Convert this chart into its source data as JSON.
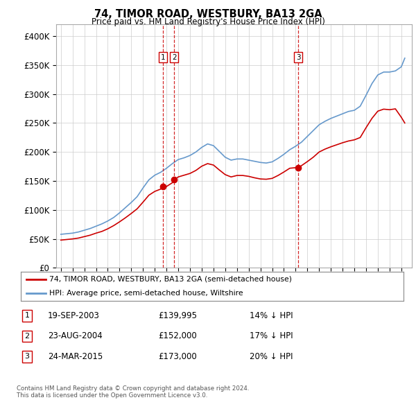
{
  "title": "74, TIMOR ROAD, WESTBURY, BA13 2GA",
  "subtitle": "Price paid vs. HM Land Registry's House Price Index (HPI)",
  "legend_line1": "74, TIMOR ROAD, WESTBURY, BA13 2GA (semi-detached house)",
  "legend_line2": "HPI: Average price, semi-detached house, Wiltshire",
  "footer1": "Contains HM Land Registry data © Crown copyright and database right 2024.",
  "footer2": "This data is licensed under the Open Government Licence v3.0.",
  "sale_color": "#cc0000",
  "hpi_color": "#6699cc",
  "vline_color": "#cc0000",
  "marker_dates": [
    2003.72,
    2004.65,
    2015.23
  ],
  "marker_labels": [
    "1",
    "2",
    "3"
  ],
  "marker_prices": [
    139995,
    152000,
    173000
  ],
  "sale_info": [
    [
      "1",
      "19-SEP-2003",
      "£139,995",
      "14% ↓ HPI"
    ],
    [
      "2",
      "23-AUG-2004",
      "£152,000",
      "17% ↓ HPI"
    ],
    [
      "3",
      "24-MAR-2015",
      "£173,000",
      "20% ↓ HPI"
    ]
  ],
  "ylim": [
    0,
    420000
  ],
  "yticks": [
    0,
    50000,
    100000,
    150000,
    200000,
    250000,
    300000,
    350000,
    400000
  ],
  "ytick_labels": [
    "£0",
    "£50K",
    "£100K",
    "£150K",
    "£200K",
    "£250K",
    "£300K",
    "£350K",
    "£400K"
  ],
  "xlim_start": 1994.6,
  "xlim_end": 2024.9,
  "years_hpi": [
    1995,
    1995.5,
    1996,
    1996.5,
    1997,
    1997.5,
    1998,
    1998.5,
    1999,
    1999.5,
    2000,
    2000.5,
    2001,
    2001.5,
    2002,
    2002.5,
    2003,
    2003.5,
    2004,
    2004.5,
    2005,
    2005.5,
    2006,
    2006.5,
    2007,
    2007.5,
    2008,
    2008.5,
    2009,
    2009.5,
    2010,
    2010.5,
    2011,
    2011.5,
    2012,
    2012.5,
    2013,
    2013.5,
    2014,
    2014.5,
    2015,
    2015.5,
    2016,
    2016.5,
    2017,
    2017.5,
    2018,
    2018.5,
    2019,
    2019.5,
    2020,
    2020.5,
    2021,
    2021.5,
    2022,
    2022.5,
    2023,
    2023.5,
    2024,
    2024.3
  ],
  "hpi_values": [
    58000,
    59000,
    60000,
    62000,
    65000,
    68000,
    72000,
    76000,
    81000,
    87000,
    95000,
    104000,
    113000,
    123000,
    138000,
    152000,
    160000,
    165000,
    172000,
    180000,
    187000,
    190000,
    194000,
    200000,
    208000,
    214000,
    211000,
    201000,
    191000,
    186000,
    188000,
    188000,
    186000,
    184000,
    182000,
    181000,
    183000,
    189000,
    196000,
    204000,
    210000,
    217000,
    227000,
    237000,
    247000,
    253000,
    258000,
    262000,
    266000,
    270000,
    272000,
    279000,
    298000,
    318000,
    333000,
    338000,
    338000,
    340000,
    347000,
    362000
  ],
  "years_sale": [
    1995,
    1995.5,
    1996,
    1996.5,
    1997,
    1997.5,
    1998,
    1998.5,
    1999,
    1999.5,
    2000,
    2000.5,
    2001,
    2001.5,
    2002,
    2002.5,
    2003,
    2003.5,
    2003.72,
    2004.0,
    2004.5,
    2004.65,
    2005,
    2005.5,
    2006,
    2006.5,
    2007,
    2007.5,
    2008,
    2008.5,
    2009,
    2009.5,
    2010,
    2010.5,
    2011,
    2011.5,
    2012,
    2012.5,
    2013,
    2013.5,
    2014,
    2014.5,
    2015,
    2015.23,
    2015.5,
    2016,
    2016.5,
    2017,
    2017.5,
    2018,
    2018.5,
    2019,
    2019.5,
    2020,
    2020.5,
    2021,
    2021.5,
    2022,
    2022.5,
    2023,
    2023.5,
    2024,
    2024.3
  ],
  "sale_values": [
    48000,
    49000,
    50000,
    51500,
    54000,
    56500,
    60000,
    63000,
    67500,
    73000,
    79500,
    86500,
    94000,
    102000,
    113500,
    125500,
    132000,
    136000,
    139995,
    140500,
    147000,
    152000,
    157000,
    160000,
    163000,
    168200,
    175500,
    180000,
    177500,
    169000,
    161000,
    157000,
    159500,
    159500,
    158000,
    155500,
    153500,
    153000,
    154500,
    159500,
    165500,
    172000,
    173000,
    173000,
    176500,
    183500,
    191000,
    200000,
    205000,
    209000,
    212500,
    216000,
    219000,
    221000,
    225000,
    242000,
    258000,
    270500,
    274000,
    273000,
    274500,
    260000,
    250000
  ]
}
